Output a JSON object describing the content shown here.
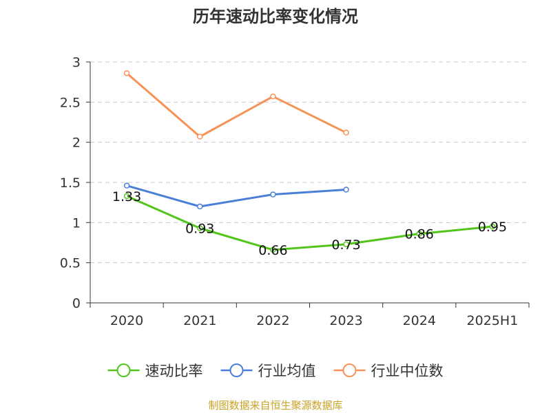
{
  "chart_data": {
    "type": "line",
    "title": "历年速动比率变化情况",
    "categories": [
      "2020",
      "2021",
      "2022",
      "2023",
      "2024",
      "2025H1"
    ],
    "ylim": [
      0,
      3
    ],
    "yticks": [
      "0",
      "0.5",
      "1",
      "1.5",
      "2",
      "2.5",
      "3"
    ],
    "grid": true,
    "legend_position": "bottom",
    "series": [
      {
        "name": "速动比率",
        "color": "#52c41a",
        "values": [
          1.33,
          0.93,
          0.66,
          0.73,
          0.86,
          0.95
        ],
        "labels": [
          "1.33",
          "0.93",
          "0.66",
          "0.73",
          "0.86",
          "0.95"
        ]
      },
      {
        "name": "行业均值",
        "color": "#4a7fd8",
        "values": [
          1.46,
          1.2,
          1.35,
          1.41,
          null,
          null
        ]
      },
      {
        "name": "行业中位数",
        "color": "#f79257",
        "values": [
          2.86,
          2.07,
          2.57,
          2.12,
          null,
          null
        ]
      }
    ],
    "source": "制图数据来自恒生聚源数据库"
  }
}
